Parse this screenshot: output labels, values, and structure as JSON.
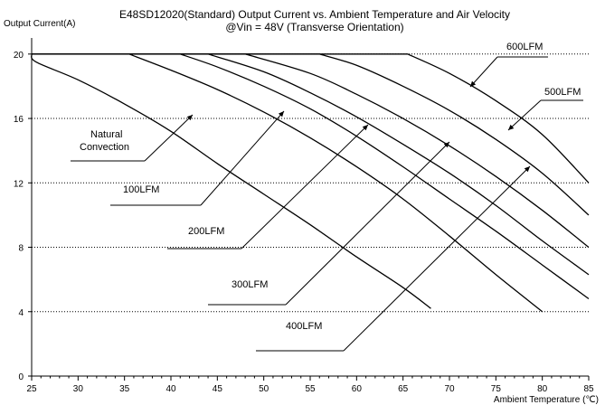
{
  "chart_data": {
    "type": "line",
    "title": "E48SD12020(Standard) Output Current vs. Ambient Temperature and Air Velocity",
    "subtitle": "@Vin = 48V (Transverse Orientation)",
    "ylabel": "Output Current(A)",
    "xlabel": "Ambient Temperature (℃)",
    "xlim": [
      25,
      85
    ],
    "ylim": [
      0,
      21
    ],
    "x_ticks": [
      "25",
      "30",
      "35",
      "40",
      "45",
      "50",
      "55",
      "60",
      "65",
      "70",
      "75",
      "80",
      "85"
    ],
    "y_ticks": [
      "0",
      "4",
      "8",
      "12",
      "16",
      "20"
    ],
    "grid": "horizontal dotted",
    "series": [
      {
        "name": "Natural Convection",
        "points": [
          [
            25,
            20
          ],
          [
            25.5,
            19.5
          ],
          [
            30,
            18.4
          ],
          [
            35,
            16.9
          ],
          [
            40,
            15.2
          ],
          [
            45,
            13.2
          ],
          [
            50,
            11.3
          ],
          [
            55,
            9.4
          ],
          [
            60,
            7.4
          ],
          [
            65,
            5.5
          ],
          [
            68,
            4.2
          ]
        ]
      },
      {
        "name": "100LFM",
        "points": [
          [
            25,
            20
          ],
          [
            35.5,
            20
          ],
          [
            40,
            19.0
          ],
          [
            45,
            17.8
          ],
          [
            50,
            16.4
          ],
          [
            55,
            14.8
          ],
          [
            60,
            13.0
          ],
          [
            65,
            11.0
          ],
          [
            70,
            8.7
          ],
          [
            75,
            6.3
          ],
          [
            80,
            4.0
          ]
        ]
      },
      {
        "name": "200LFM",
        "points": [
          [
            25,
            20
          ],
          [
            41,
            20
          ],
          [
            45,
            19.2
          ],
          [
            50,
            18.0
          ],
          [
            55,
            16.6
          ],
          [
            60,
            14.9
          ],
          [
            65,
            13.0
          ],
          [
            70,
            11.0
          ],
          [
            75,
            9.0
          ],
          [
            80,
            6.9
          ],
          [
            85,
            4.8
          ]
        ]
      },
      {
        "name": "300LFM",
        "points": [
          [
            25,
            20
          ],
          [
            44,
            20
          ],
          [
            50,
            18.9
          ],
          [
            55,
            17.6
          ],
          [
            60,
            16.1
          ],
          [
            65,
            14.4
          ],
          [
            70,
            12.6
          ],
          [
            75,
            10.6
          ],
          [
            80,
            8.4
          ],
          [
            85,
            6.3
          ]
        ]
      },
      {
        "name": "400LFM",
        "points": [
          [
            25,
            20
          ],
          [
            48,
            20
          ],
          [
            55,
            18.8
          ],
          [
            60,
            17.5
          ],
          [
            65,
            16.0
          ],
          [
            70,
            14.3
          ],
          [
            75,
            12.4
          ],
          [
            80,
            10.3
          ],
          [
            85,
            8.0
          ]
        ]
      },
      {
        "name": "500LFM",
        "points": [
          [
            25,
            20
          ],
          [
            56,
            20
          ],
          [
            60,
            19.3
          ],
          [
            65,
            18.0
          ],
          [
            70,
            16.5
          ],
          [
            75,
            14.7
          ],
          [
            80,
            12.6
          ],
          [
            85,
            10.0
          ]
        ]
      },
      {
        "name": "600LFM",
        "points": [
          [
            25,
            20
          ],
          [
            65.5,
            20
          ],
          [
            70,
            18.8
          ],
          [
            75,
            17.1
          ],
          [
            80,
            15.0
          ],
          [
            85,
            12.0
          ]
        ]
      }
    ],
    "annotations": [
      {
        "text": "Natural Convection"
      },
      {
        "text": "100LFM"
      },
      {
        "text": "200LFM"
      },
      {
        "text": "300LFM"
      },
      {
        "text": "400LFM"
      },
      {
        "text": "500LFM"
      },
      {
        "text": "600LFM"
      }
    ]
  }
}
